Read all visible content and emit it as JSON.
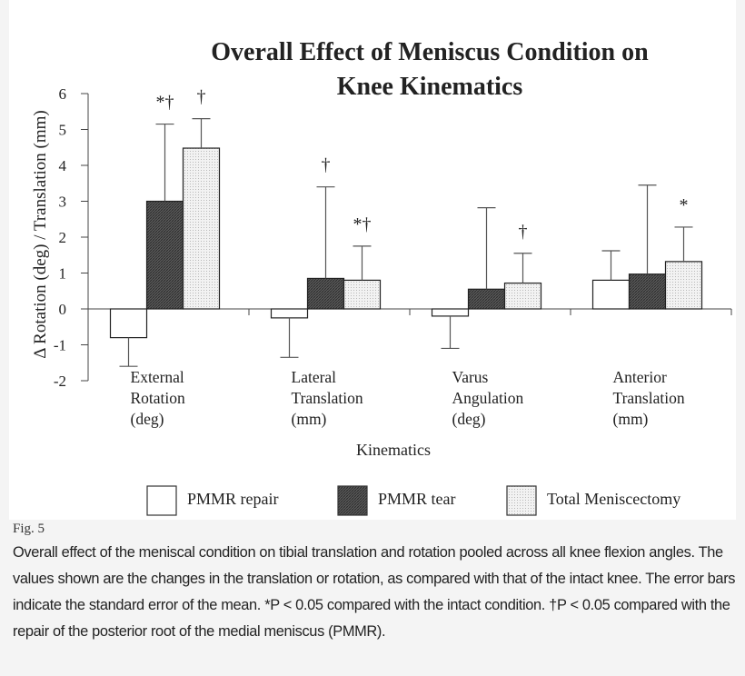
{
  "chart_data": {
    "type": "bar",
    "title": [
      "Overall Effect of Meniscus Condition on",
      "Knee Kinematics"
    ],
    "xlabel": "Kinematics",
    "ylabel": "Δ Rotation (deg) / Translation (mm)",
    "ylim": [
      -2,
      6
    ],
    "yticks": [
      "-2",
      "-1",
      "0",
      "1",
      "2",
      "3",
      "4",
      "5",
      "6"
    ],
    "grid": false,
    "legend_position": "bottom",
    "categories": [
      [
        "External",
        "Rotation",
        "(deg)"
      ],
      [
        "Lateral",
        "Translation",
        "(mm)"
      ],
      [
        "Varus",
        "Angulation",
        "(deg)"
      ],
      [
        "Anterior",
        "Translation",
        "(mm)"
      ]
    ],
    "series": [
      {
        "name": "PMMR repair",
        "fill": "white",
        "values": [
          -0.8,
          -0.25,
          -0.2,
          0.8
        ],
        "error_ends": [
          -1.6,
          -1.35,
          -1.1,
          1.62
        ],
        "marks": [
          "",
          "",
          "",
          ""
        ]
      },
      {
        "name": "PMMR tear",
        "fill": "dark-crosshatch",
        "values": [
          3.0,
          0.85,
          0.55,
          0.97
        ],
        "error_ends": [
          5.15,
          3.4,
          2.82,
          3.45
        ],
        "marks": [
          "*†",
          "†",
          "",
          ""
        ]
      },
      {
        "name": "Total Meniscectomy",
        "fill": "light-dots",
        "values": [
          4.48,
          0.8,
          0.72,
          1.32
        ],
        "error_ends": [
          5.3,
          1.75,
          1.55,
          2.28
        ],
        "marks": [
          "†",
          "*†",
          "†",
          "*"
        ]
      }
    ]
  },
  "figure_label": "Fig. 5",
  "caption": "Overall effect of the meniscal condition on tibial translation and rotation pooled across all knee flexion angles. The values shown are the changes in the translation or rotation, as compared with that of the intact knee. The error bars indicate the standard error of the mean. *P < 0.05 compared with the intact condition. †P < 0.05 compared with the repair of the posterior root of the medial meniscus (PMMR)."
}
